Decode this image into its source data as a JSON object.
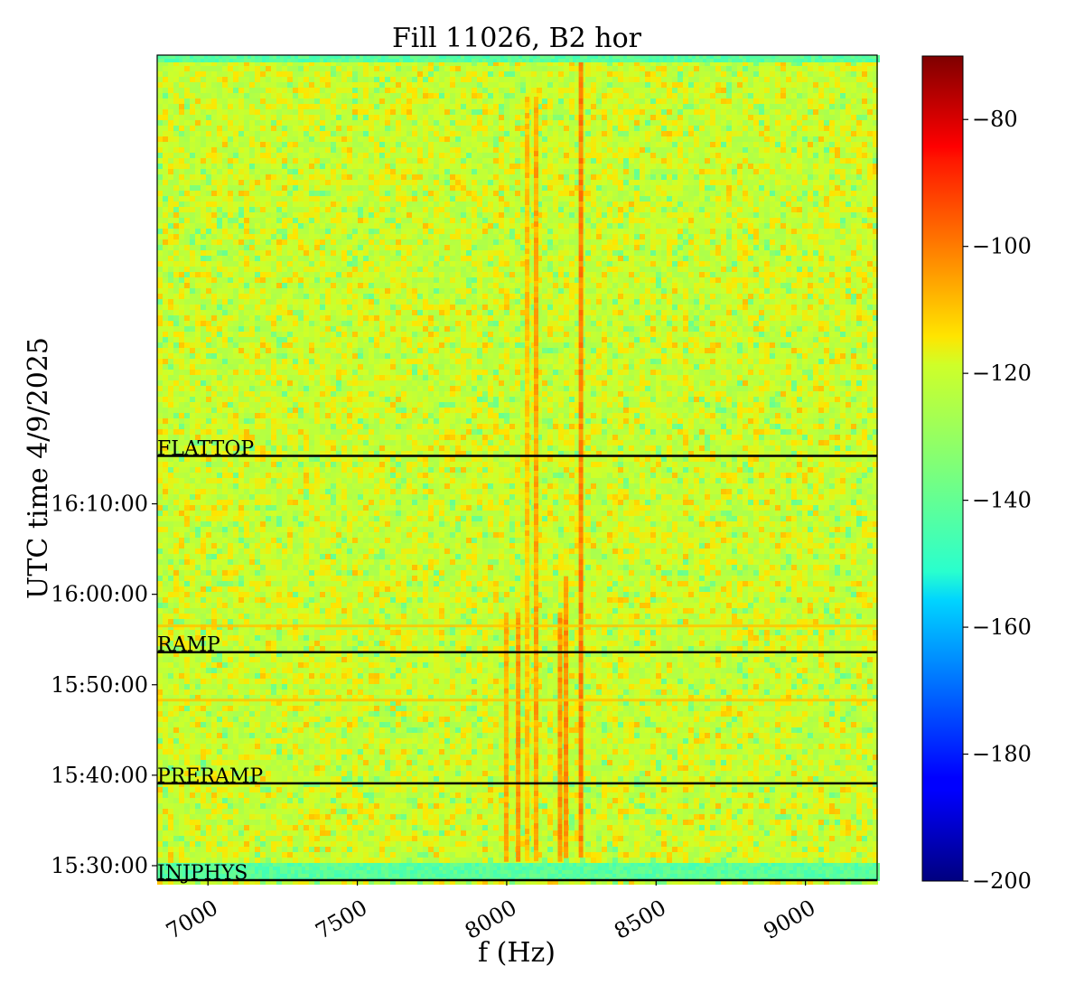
{
  "chart_data": {
    "type": "heatmap",
    "title": "Fill 11026, B2 hor",
    "xlabel": "f (Hz)",
    "ylabel": "UTC time 4/9/2025",
    "xlim": [
      6830,
      9240
    ],
    "ylim_minutes": [
      928.4,
      1019.6
    ],
    "x_ticks": [
      {
        "value": 7000,
        "label": "7000"
      },
      {
        "value": 7500,
        "label": "7500"
      },
      {
        "value": 8000,
        "label": "8000"
      },
      {
        "value": 8500,
        "label": "8500"
      },
      {
        "value": 9000,
        "label": "9000"
      }
    ],
    "y_ticks": [
      {
        "minutes": 930,
        "label": "15:30:00"
      },
      {
        "minutes": 940,
        "label": "15:40:00"
      },
      {
        "minutes": 950,
        "label": "15:50:00"
      },
      {
        "minutes": 960,
        "label": "16:00:00"
      },
      {
        "minutes": 970,
        "label": "16:10:00"
      }
    ],
    "phases": [
      {
        "label": "INJPHYS",
        "minutes": 928.4
      },
      {
        "label": "PRERAMP",
        "minutes": 939.1
      },
      {
        "label": "RAMP",
        "minutes": 953.6
      },
      {
        "label": "FLATTOP",
        "minutes": 975.3
      }
    ],
    "colorbar": {
      "colormap": "jet",
      "range": [
        -200,
        -70
      ],
      "ticks": [
        {
          "value": -80,
          "label": "−80"
        },
        {
          "value": -100,
          "label": "−100"
        },
        {
          "value": -120,
          "label": "−120"
        },
        {
          "value": -140,
          "label": "−140"
        },
        {
          "value": -160,
          "label": "−160"
        },
        {
          "value": -180,
          "label": "−180"
        },
        {
          "value": -200,
          "label": "−200"
        }
      ]
    },
    "background_level_db": -120,
    "spectral_lines": [
      {
        "f": 8000,
        "db": -107,
        "from_min": 931,
        "to_min": 958
      },
      {
        "f": 8040,
        "db": -104,
        "from_min": 931,
        "to_min": 958
      },
      {
        "f": 8070,
        "db": -110,
        "from_min": 931,
        "to_min": 1015
      },
      {
        "f": 8100,
        "db": -106,
        "from_min": 931,
        "to_min": 1015
      },
      {
        "f": 8180,
        "db": -104,
        "from_min": 931,
        "to_min": 958
      },
      {
        "f": 8200,
        "db": -103,
        "from_min": 931,
        "to_min": 962
      },
      {
        "f": 8250,
        "db": -101,
        "from_min": 931,
        "to_min": 1019
      }
    ],
    "horizontal_bands": [
      {
        "minutes": 956.5,
        "db": -110
      },
      {
        "minutes": 948.3,
        "db": -110
      }
    ],
    "low_regions": [
      {
        "from_min": 928.4,
        "to_min": 930.3,
        "db": -142
      },
      {
        "from_min": 1019.2,
        "to_min": 1019.6,
        "db": -142
      }
    ]
  }
}
